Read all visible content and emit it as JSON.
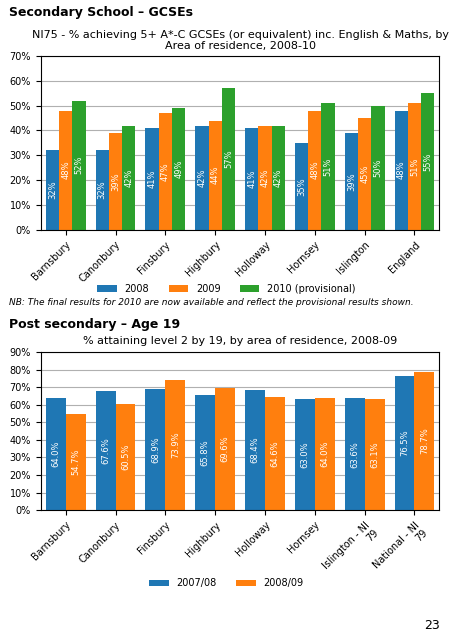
{
  "chart_data": [
    {
      "type": "bar",
      "subtitle": "Secondary School – GCSEs",
      "title": "NI75 - % achieving 5+ A*-C GCSEs (or equivalent) inc. English & Maths, by\nArea of residence, 2008-10",
      "categories": [
        "Barnsbury",
        "Canonbury",
        "Finsbury",
        "Highbury",
        "Holloway",
        "Hornsey",
        "Islington",
        "England"
      ],
      "series": [
        {
          "name": "2008",
          "values": [
            32,
            32,
            41,
            42,
            41,
            35,
            39,
            48
          ],
          "value_labels": [
            "32%",
            "32%",
            "41%",
            "42%",
            "41%",
            "35%",
            "39%",
            "48%"
          ]
        },
        {
          "name": "2009",
          "values": [
            48,
            39,
            47,
            44,
            42,
            48,
            45,
            51
          ],
          "value_labels": [
            "48%",
            "39%",
            "47%",
            "44%",
            "42%",
            "48%",
            "45%",
            "51%"
          ]
        },
        {
          "name": "2010 (provisional)",
          "values": [
            52,
            42,
            49,
            57,
            42,
            51,
            50,
            55
          ],
          "value_labels": [
            "52%",
            "42%",
            "49%",
            "57%",
            "42%",
            "51%",
            "50%",
            "55%"
          ]
        }
      ],
      "ylim": [
        0,
        70
      ],
      "yticks": [
        {
          "value": 0,
          "label": "0%"
        },
        {
          "value": 10,
          "label": "10%"
        },
        {
          "value": 20,
          "label": "20%"
        },
        {
          "value": 30,
          "label": "30%"
        },
        {
          "value": 40,
          "label": "40%"
        },
        {
          "value": 50,
          "label": "50%"
        },
        {
          "value": 60,
          "label": "60%"
        },
        {
          "value": 70,
          "label": "70%"
        }
      ],
      "grid": true,
      "legend": "bottom",
      "data_labels": true,
      "annotations": [
        "NB: The final results for 2010 are now available and reflect the provisional results shown."
      ]
    },
    {
      "type": "bar",
      "subtitle": "Post secondary – Age 19",
      "title": "% attaining level 2 by 19, by area of residence, 2008-09",
      "categories": [
        "Barnsbury",
        "Canonbury",
        "Finsbury",
        "Highbury",
        "Holloway",
        "Hornsey",
        "Islington - NI\n79",
        "National - NI\n79"
      ],
      "series": [
        {
          "name": "2007/08",
          "values": [
            64.0,
            67.6,
            68.9,
            65.8,
            68.4,
            63.0,
            63.6,
            76.5
          ],
          "value_labels": [
            "64.0%",
            "67.6%",
            "68.9%",
            "65.8%",
            "68.4%",
            "63.0%",
            "63.6%",
            "76.5%"
          ]
        },
        {
          "name": "2008/09",
          "values": [
            54.7,
            60.5,
            73.9,
            69.6,
            64.6,
            64.0,
            63.1,
            78.7
          ],
          "value_labels": [
            "54.7%",
            "60.5%",
            "73.9%",
            "69.6%",
            "64.6%",
            "64.0%",
            "63.1%",
            "78.7%"
          ]
        }
      ],
      "ylim": [
        0,
        90
      ],
      "yticks": [
        {
          "value": 0,
          "label": "0%"
        },
        {
          "value": 10,
          "label": "10%"
        },
        {
          "value": 20,
          "label": "20%"
        },
        {
          "value": 30,
          "label": "30%"
        },
        {
          "value": 40,
          "label": "40%"
        },
        {
          "value": 50,
          "label": "50%"
        },
        {
          "value": 60,
          "label": "60%"
        },
        {
          "value": 70,
          "label": "70%"
        },
        {
          "value": 80,
          "label": "80%"
        },
        {
          "value": 90,
          "label": "90%"
        }
      ],
      "grid": true,
      "legend": "bottom",
      "data_labels": true,
      "annotations": [
        "23"
      ]
    }
  ]
}
